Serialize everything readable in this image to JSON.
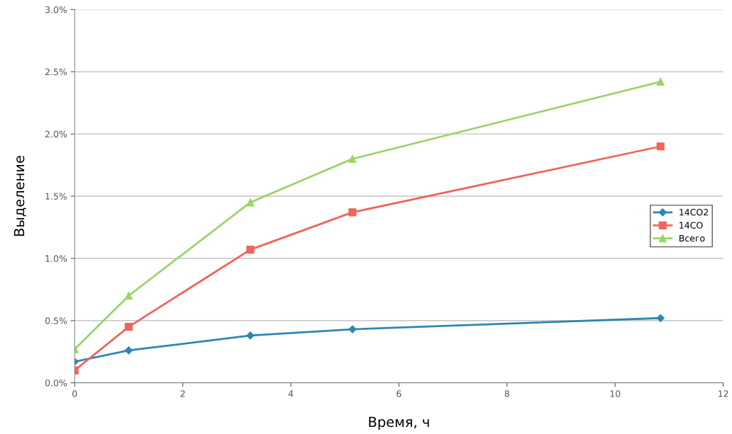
{
  "chart_data": {
    "type": "line",
    "xlabel": "Время, ч",
    "ylabel": "Выделение",
    "x": [
      0,
      1,
      3.25,
      5.14,
      10.84
    ],
    "series": [
      {
        "name": "14CO2",
        "color": "#2e86b3",
        "marker": "diamond",
        "values": [
          0.17,
          0.26,
          0.38,
          0.43,
          0.52
        ]
      },
      {
        "name": "14CO",
        "color": "#f0645a",
        "marker": "square",
        "values": [
          0.1,
          0.45,
          1.07,
          1.37,
          1.9
        ]
      },
      {
        "name": "Всего",
        "color": "#9cd46a",
        "marker": "triangle",
        "values": [
          0.27,
          0.7,
          1.45,
          1.8,
          2.42
        ]
      }
    ],
    "xlim": [
      0,
      12
    ],
    "xticks": [
      0,
      2,
      4,
      6,
      8,
      10,
      12
    ],
    "ylim": [
      0,
      3.0
    ],
    "yticks": [
      {
        "value": 0,
        "label": "0.0%"
      },
      {
        "value": 0.5,
        "label": "0.5%"
      },
      {
        "value": 1.0,
        "label": "1.0%"
      },
      {
        "value": 1.5,
        "label": "1.5%"
      },
      {
        "value": 2.0,
        "label": "2.0%"
      },
      {
        "value": 2.5,
        "label": "2.5%"
      },
      {
        "value": 3.0,
        "label": "3.0%"
      }
    ],
    "grid": "y",
    "legend": "right"
  }
}
